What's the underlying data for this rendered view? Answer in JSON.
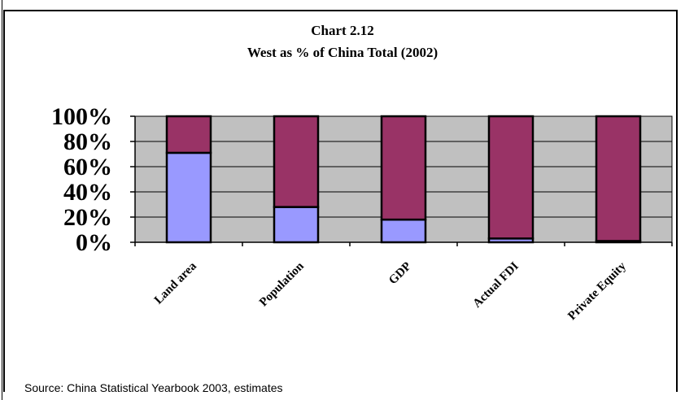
{
  "chart_data": {
    "type": "bar",
    "stacked": true,
    "percent": true,
    "title": "Chart 2.12",
    "subtitle": "West as % of China Total (2002)",
    "categories": [
      "Land area",
      "Population",
      "GDP",
      "Actual FDI",
      "Private Equity"
    ],
    "series": [
      {
        "values": [
          71,
          28,
          18,
          3,
          1
        ],
        "color": "#9999ff"
      },
      {
        "values": [
          29,
          72,
          82,
          97,
          99
        ],
        "color": "#993366"
      }
    ],
    "yticks": [
      "100%",
      "80%",
      "60%",
      "40%",
      "20%",
      "0%"
    ],
    "ylim": [
      0,
      100
    ],
    "grid": true,
    "plot_background": "#c0c0c0",
    "source": "Source: China Statistical Yearbook 2003, estimates"
  }
}
